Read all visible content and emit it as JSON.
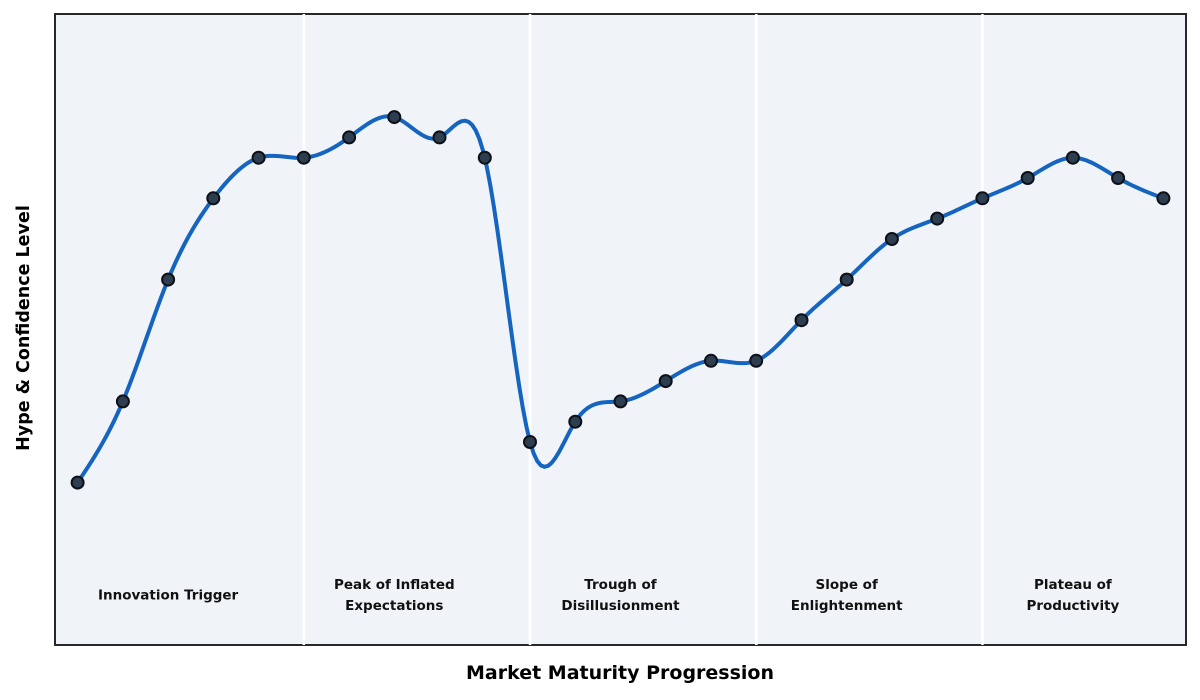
{
  "chart_data": {
    "type": "line",
    "title": "",
    "xlabel": "Market Maturity Progression",
    "ylabel": "Hype & Confidence Level",
    "x": [
      0,
      1,
      2,
      3,
      4,
      5,
      6,
      7,
      8,
      9,
      10,
      11,
      12,
      13,
      14,
      15,
      16,
      17,
      18,
      19,
      20,
      21,
      22,
      23,
      24
    ],
    "values": [
      10,
      20,
      35,
      45,
      50,
      50,
      52.5,
      55,
      52.5,
      50,
      15,
      17.5,
      20,
      22.5,
      25,
      25,
      30,
      35,
      40,
      42.5,
      45,
      47.5,
      50,
      47.5,
      45
    ],
    "xlim": [
      -0.5,
      24.5
    ],
    "ylim": [
      -10,
      67.7
    ],
    "grid": false,
    "legend": null,
    "interpolation": "natural-cubic-spline",
    "axis_ticks_visible": false,
    "colors": {
      "line": "#1565C0",
      "marker_fill": "#2C3E50",
      "marker_edge": "#0d1117",
      "plot_background": "#f0f4f8",
      "figure_background": "#ffffff",
      "phase_divider": "#ffffff",
      "border": "#26282c",
      "label_text": "#111111"
    },
    "phase_divider_x": [
      5,
      10,
      15,
      20
    ],
    "phases": [
      {
        "name": "innovation-trigger",
        "center_x": 2,
        "lines": [
          "Innovation Trigger"
        ]
      },
      {
        "name": "peak-of-inflated-expectations",
        "center_x": 7,
        "lines": [
          "Peak of Inflated",
          "Expectations"
        ]
      },
      {
        "name": "trough-of-disillusionment",
        "center_x": 12,
        "lines": [
          "Trough of",
          "Disillusionment"
        ]
      },
      {
        "name": "slope-of-enlightenment",
        "center_x": 17,
        "lines": [
          "Slope of",
          "Enlightenment"
        ]
      },
      {
        "name": "plateau-of-productivity",
        "center_x": 22,
        "lines": [
          "Plateau of",
          "Productivity"
        ]
      }
    ],
    "style": {
      "line_width": 4,
      "marker_radius": 6,
      "marker_edge_width": 2,
      "divider_width": 2.5
    }
  }
}
